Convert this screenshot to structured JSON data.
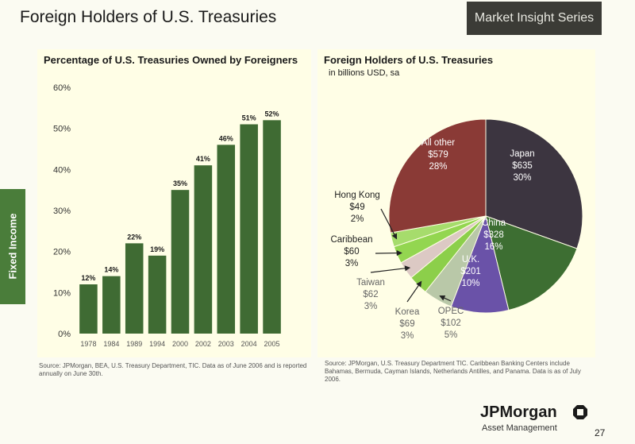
{
  "header": {
    "title": "Foreign Holders of U.S. Treasuries",
    "series": "Market Insight Series"
  },
  "side_tab": "Fixed Income",
  "chart_data": [
    {
      "type": "bar",
      "title": "Percentage of U.S. Treasuries Owned by Foreigners",
      "categories": [
        "1978",
        "1984",
        "1989",
        "1994",
        "2000",
        "2002",
        "2003",
        "2004",
        "2005"
      ],
      "values": [
        12,
        14,
        22,
        19,
        35,
        41,
        46,
        51,
        52
      ],
      "data_labels": [
        "12%",
        "14%",
        "22%",
        "19%",
        "35%",
        "41%",
        "46%",
        "51%",
        "52%"
      ],
      "yticks": [
        "0%",
        "10%",
        "20%",
        "30%",
        "40%",
        "50%",
        "60%"
      ],
      "ylim": [
        0,
        60
      ],
      "color": "#3f6b33"
    },
    {
      "type": "pie",
      "title": "Foreign Holders of U.S. Treasuries",
      "subtitle": "in billions USD, sa",
      "slices": [
        {
          "name": "Japan",
          "value": 635,
          "value_label": "$635",
          "pct_label": "30%",
          "color": "#3c3540"
        },
        {
          "name": "China",
          "value": 328,
          "value_label": "$328",
          "pct_label": "16%",
          "color": "#3d6e32"
        },
        {
          "name": "U.K.",
          "value": 201,
          "value_label": "$201",
          "pct_label": "10%",
          "color": "#6a52a8"
        },
        {
          "name": "OPEC",
          "value": 102,
          "value_label": "$102",
          "pct_label": "5%",
          "color": "#b9c8a8"
        },
        {
          "name": "Korea",
          "value": 69,
          "value_label": "$69",
          "pct_label": "3%",
          "color": "#8ccf4a"
        },
        {
          "name": "Taiwan",
          "value": 62,
          "value_label": "$62",
          "pct_label": "3%",
          "color": "#dcc9c4"
        },
        {
          "name": "Caribbean",
          "value": 60,
          "value_label": "$60",
          "pct_label": "3%",
          "color": "#93d650"
        },
        {
          "name": "Hong Kong",
          "value": 49,
          "value_label": "$49",
          "pct_label": "2%",
          "color": "#a6dc6c"
        },
        {
          "name": "All other",
          "value": 579,
          "value_label": "$579",
          "pct_label": "28%",
          "color": "#8a3a36"
        }
      ]
    }
  ],
  "footnotes": {
    "left": "Source: JPMorgan, BEA, U.S. Treasury Department, TIC. Data as of June 2006 and is reported annually on June 30th.",
    "right": "Source: JPMorgan, U.S. Treasury Department TIC. Caribbean Banking Centers include Bahamas, Bermuda, Cayman Islands, Netherlands Antilles, and Panama. Data is as of July 2006."
  },
  "brand": {
    "name": "JPMorgan",
    "sub": "Asset Management",
    "page": "27"
  }
}
